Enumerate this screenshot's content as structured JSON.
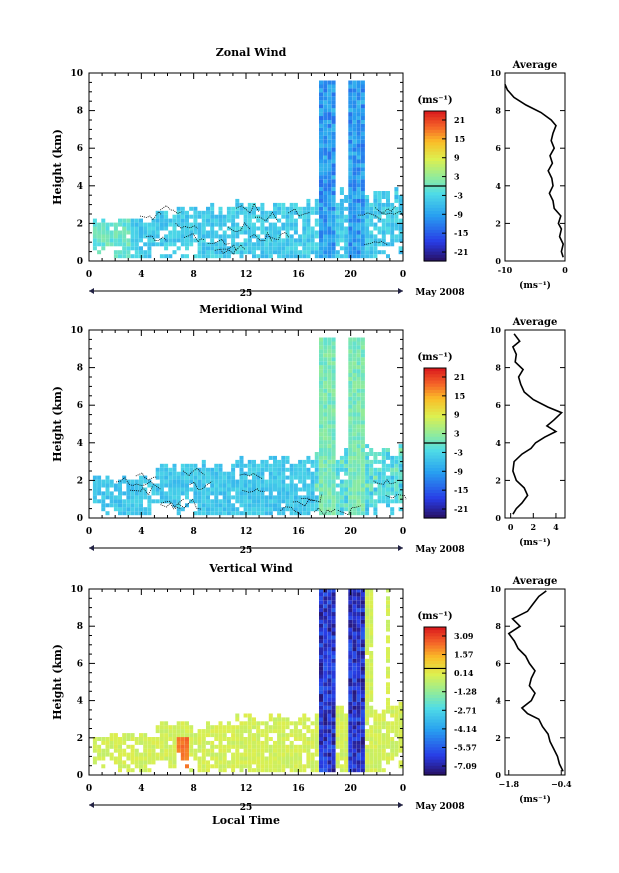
{
  "chart_data": [
    {
      "type": "heatmap",
      "title": "Zonal Wind",
      "ylabel": "Height (km)",
      "yticks": [
        "0",
        "2",
        "4",
        "6",
        "8",
        "10"
      ],
      "xticks": [
        "0",
        "4",
        "8",
        "12",
        "16",
        "20",
        "0"
      ],
      "date_label": "25",
      "month_label": "May 2008",
      "xlabel": "",
      "ylim": [
        0,
        10
      ],
      "colorbar": {
        "unit": "(ms⁻¹)",
        "ticks": [
          "21",
          "15",
          "9",
          "3",
          "-3",
          "-9",
          "-15",
          "-21"
        ],
        "range": [
          -24,
          24
        ]
      },
      "profile": {
        "title": "Average",
        "xlabel": "(ms⁻¹)",
        "xticks": [
          "-10",
          "0"
        ],
        "xlim": [
          -10,
          0
        ],
        "ylim": [
          0,
          10
        ],
        "yticks": [
          "0",
          "2",
          "4",
          "6",
          "8",
          "10"
        ],
        "points": [
          [
            -0.3,
            0.2
          ],
          [
            -0.6,
            0.5
          ],
          [
            -0.3,
            0.9
          ],
          [
            -0.9,
            1.3
          ],
          [
            -0.6,
            1.7
          ],
          [
            -1.1,
            2.0
          ],
          [
            -0.7,
            2.4
          ],
          [
            -1.8,
            2.8
          ],
          [
            -2.0,
            3.2
          ],
          [
            -2.6,
            3.6
          ],
          [
            -2.0,
            4.0
          ],
          [
            -2.2,
            4.4
          ],
          [
            -2.8,
            4.8
          ],
          [
            -2.1,
            5.2
          ],
          [
            -2.5,
            5.6
          ],
          [
            -1.8,
            6.0
          ],
          [
            -2.3,
            6.4
          ],
          [
            -2.0,
            6.8
          ],
          [
            -1.5,
            7.2
          ],
          [
            -2.3,
            7.5
          ],
          [
            -4.0,
            7.9
          ],
          [
            -6.5,
            8.3
          ],
          [
            -8.5,
            8.7
          ],
          [
            -9.6,
            9.1
          ],
          [
            -10,
            9.4
          ]
        ]
      }
    },
    {
      "type": "heatmap",
      "title": "Meridional Wind",
      "ylabel": "Height (km)",
      "yticks": [
        "0",
        "2",
        "4",
        "6",
        "8",
        "10"
      ],
      "xticks": [
        "0",
        "4",
        "8",
        "12",
        "16",
        "20",
        "0"
      ],
      "date_label": "25",
      "month_label": "May 2008",
      "xlabel": "",
      "ylim": [
        0,
        10
      ],
      "colorbar": {
        "unit": "(ms⁻¹)",
        "ticks": [
          "21",
          "15",
          "9",
          "3",
          "-3",
          "-9",
          "-15",
          "-21"
        ],
        "range": [
          -24,
          24
        ]
      },
      "profile": {
        "title": "Average",
        "xlabel": "(ms⁻¹)",
        "xticks": [
          "0",
          "2",
          "4"
        ],
        "xlim": [
          -0.5,
          4.8
        ],
        "ylim": [
          0,
          10
        ],
        "yticks": [
          "0",
          "2",
          "4",
          "6",
          "8",
          "10"
        ],
        "points": [
          [
            0.2,
            0.2
          ],
          [
            0.5,
            0.5
          ],
          [
            1.0,
            0.8
          ],
          [
            1.5,
            1.2
          ],
          [
            1.2,
            1.6
          ],
          [
            0.5,
            2.0
          ],
          [
            0.2,
            2.5
          ],
          [
            0.3,
            3.0
          ],
          [
            1.0,
            3.4
          ],
          [
            1.8,
            3.7
          ],
          [
            2.2,
            4.0
          ],
          [
            3.0,
            4.3
          ],
          [
            4.0,
            4.6
          ],
          [
            3.2,
            4.9
          ],
          [
            3.8,
            5.2
          ],
          [
            4.5,
            5.6
          ],
          [
            3.3,
            5.9
          ],
          [
            2.0,
            6.3
          ],
          [
            1.2,
            6.7
          ],
          [
            0.9,
            7.1
          ],
          [
            0.7,
            7.5
          ],
          [
            1.1,
            7.9
          ],
          [
            0.4,
            8.3
          ],
          [
            0.5,
            8.7
          ],
          [
            0.2,
            9.1
          ],
          [
            0.8,
            9.4
          ],
          [
            0.3,
            9.8
          ]
        ]
      }
    },
    {
      "type": "heatmap",
      "title": "Vertical Wind",
      "ylabel": "Height (km)",
      "yticks": [
        "0",
        "2",
        "4",
        "6",
        "8",
        "10"
      ],
      "xticks": [
        "0",
        "4",
        "8",
        "12",
        "16",
        "20",
        "0"
      ],
      "date_label": "25",
      "month_label": "May 2008",
      "xlabel": "Local Time",
      "ylim": [
        0,
        10
      ],
      "colorbar": {
        "unit": "(ms⁻¹)",
        "ticks": [
          "3.09",
          "1.57",
          "0.14",
          "-1.28",
          "-2.71",
          "-4.14",
          "-5.57",
          "-7.09"
        ],
        "range": [
          -7.6,
          3.7
        ]
      },
      "profile": {
        "title": "Average",
        "xlabel": "(ms⁻¹)",
        "xticks": [
          "−1.8",
          "−0.4"
        ],
        "xlim": [
          -1.9,
          -0.3
        ],
        "ylim": [
          0,
          10
        ],
        "yticks": [
          "0",
          "2",
          "4",
          "6",
          "8",
          "10"
        ],
        "points": [
          [
            -0.35,
            0.2
          ],
          [
            -0.45,
            0.6
          ],
          [
            -0.5,
            1.0
          ],
          [
            -0.6,
            1.4
          ],
          [
            -0.7,
            1.8
          ],
          [
            -0.75,
            2.2
          ],
          [
            -0.9,
            2.6
          ],
          [
            -1.0,
            3.0
          ],
          [
            -1.3,
            3.3
          ],
          [
            -1.45,
            3.6
          ],
          [
            -1.2,
            4.0
          ],
          [
            -1.1,
            4.4
          ],
          [
            -1.25,
            4.8
          ],
          [
            -1.2,
            5.2
          ],
          [
            -1.1,
            5.6
          ],
          [
            -1.25,
            6.0
          ],
          [
            -1.35,
            6.4
          ],
          [
            -1.55,
            6.8
          ],
          [
            -1.65,
            7.2
          ],
          [
            -1.8,
            7.6
          ],
          [
            -1.5,
            8.0
          ],
          [
            -1.7,
            8.4
          ],
          [
            -1.3,
            8.8
          ],
          [
            -1.15,
            9.2
          ],
          [
            -1.0,
            9.6
          ],
          [
            -0.8,
            9.9
          ]
        ]
      }
    }
  ]
}
